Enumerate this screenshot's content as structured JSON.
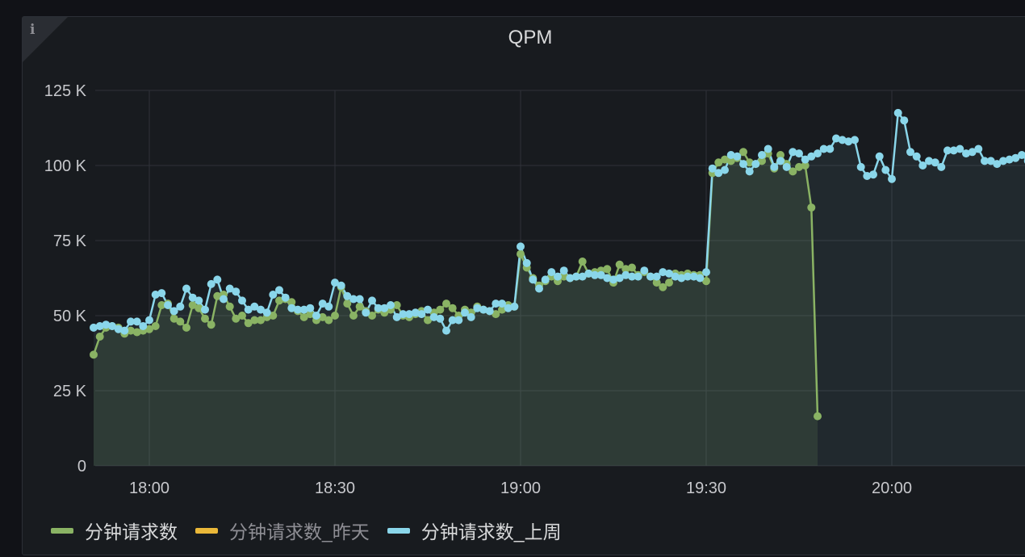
{
  "panel": {
    "title": "QPM",
    "info_icon": "info-icon"
  },
  "chart_data": {
    "type": "line",
    "title": "QPM",
    "x_ticks": [
      "18:00",
      "18:30",
      "19:00",
      "19:30",
      "20:00"
    ],
    "y_ticks": [
      "0",
      "25 K",
      "50 K",
      "75 K",
      "100 K",
      "125 K"
    ],
    "ylim": [
      0,
      125000
    ],
    "xlim_minutes": [
      1071,
      1223
    ],
    "grid": true,
    "legend_position": "bottom-left",
    "series": [
      {
        "name": "分钟请求数",
        "color": "#8ab364",
        "fill": true,
        "points": [
          [
            1071,
            37000
          ],
          [
            1072,
            43000
          ],
          [
            1073,
            46000
          ],
          [
            1074,
            46500
          ],
          [
            1075,
            46000
          ],
          [
            1076,
            44000
          ],
          [
            1077,
            45000
          ],
          [
            1078,
            44500
          ],
          [
            1079,
            45000
          ],
          [
            1080,
            45500
          ],
          [
            1081,
            46500
          ],
          [
            1082,
            53500
          ],
          [
            1083,
            54000
          ],
          [
            1084,
            49000
          ],
          [
            1085,
            48000
          ],
          [
            1086,
            46000
          ],
          [
            1087,
            53500
          ],
          [
            1088,
            52500
          ],
          [
            1089,
            49000
          ],
          [
            1090,
            47000
          ],
          [
            1091,
            56500
          ],
          [
            1092,
            57000
          ],
          [
            1093,
            53000
          ],
          [
            1094,
            49000
          ],
          [
            1095,
            50000
          ],
          [
            1096,
            47500
          ],
          [
            1097,
            48500
          ],
          [
            1098,
            48500
          ],
          [
            1099,
            49500
          ],
          [
            1100,
            50000
          ],
          [
            1101,
            55000
          ],
          [
            1102,
            55500
          ],
          [
            1103,
            54500
          ],
          [
            1104,
            51500
          ],
          [
            1105,
            49500
          ],
          [
            1106,
            50500
          ],
          [
            1107,
            48500
          ],
          [
            1108,
            49500
          ],
          [
            1109,
            48500
          ],
          [
            1110,
            50000
          ],
          [
            1111,
            59500
          ],
          [
            1112,
            54000
          ],
          [
            1113,
            50000
          ],
          [
            1114,
            53000
          ],
          [
            1115,
            51500
          ],
          [
            1116,
            50000
          ],
          [
            1117,
            52000
          ],
          [
            1118,
            51000
          ],
          [
            1119,
            52000
          ],
          [
            1120,
            53500
          ],
          [
            1121,
            50000
          ],
          [
            1122,
            49500
          ],
          [
            1123,
            50500
          ],
          [
            1124,
            51500
          ],
          [
            1125,
            48500
          ],
          [
            1126,
            51000
          ],
          [
            1127,
            52000
          ],
          [
            1128,
            54000
          ],
          [
            1129,
            52500
          ],
          [
            1130,
            50000
          ],
          [
            1131,
            52000
          ],
          [
            1132,
            51000
          ],
          [
            1133,
            53000
          ],
          [
            1134,
            52000
          ],
          [
            1135,
            51500
          ],
          [
            1136,
            50500
          ],
          [
            1137,
            52000
          ],
          [
            1138,
            53500
          ],
          [
            1139,
            53000
          ],
          [
            1140,
            70500
          ],
          [
            1141,
            66000
          ],
          [
            1142,
            62500
          ],
          [
            1143,
            60000
          ],
          [
            1144,
            61500
          ],
          [
            1145,
            63000
          ],
          [
            1146,
            61500
          ],
          [
            1147,
            63000
          ],
          [
            1148,
            62500
          ],
          [
            1149,
            63000
          ],
          [
            1150,
            68000
          ],
          [
            1151,
            64000
          ],
          [
            1152,
            64500
          ],
          [
            1153,
            65000
          ],
          [
            1154,
            65500
          ],
          [
            1155,
            61000
          ],
          [
            1156,
            67000
          ],
          [
            1157,
            65500
          ],
          [
            1158,
            66000
          ],
          [
            1159,
            63500
          ],
          [
            1160,
            64500
          ],
          [
            1161,
            63000
          ],
          [
            1162,
            61000
          ],
          [
            1163,
            59500
          ],
          [
            1164,
            61000
          ],
          [
            1165,
            64000
          ],
          [
            1166,
            63500
          ],
          [
            1167,
            64000
          ],
          [
            1168,
            63500
          ],
          [
            1169,
            63500
          ],
          [
            1170,
            61500
          ],
          [
            1171,
            97500
          ],
          [
            1172,
            101000
          ],
          [
            1173,
            102000
          ],
          [
            1174,
            101500
          ],
          [
            1175,
            102500
          ],
          [
            1176,
            104500
          ],
          [
            1177,
            101000
          ],
          [
            1178,
            100500
          ],
          [
            1179,
            101500
          ],
          [
            1180,
            104000
          ],
          [
            1181,
            99000
          ],
          [
            1182,
            103500
          ],
          [
            1183,
            100500
          ],
          [
            1184,
            98000
          ],
          [
            1185,
            99500
          ],
          [
            1186,
            100000
          ],
          [
            1187,
            86000
          ],
          [
            1188,
            16500
          ]
        ]
      },
      {
        "name": "分钟请求数_昨天",
        "color": "#eab839",
        "hidden": true,
        "points": []
      },
      {
        "name": "分钟请求数_上周",
        "color": "#8ad6ea",
        "fill": true,
        "points": [
          [
            1071,
            46000
          ],
          [
            1072,
            46500
          ],
          [
            1073,
            47000
          ],
          [
            1074,
            46500
          ],
          [
            1075,
            45500
          ],
          [
            1076,
            45000
          ],
          [
            1077,
            48000
          ],
          [
            1078,
            48000
          ],
          [
            1079,
            46500
          ],
          [
            1080,
            48500
          ],
          [
            1081,
            57000
          ],
          [
            1082,
            57500
          ],
          [
            1083,
            53500
          ],
          [
            1084,
            51500
          ],
          [
            1085,
            53000
          ],
          [
            1086,
            59000
          ],
          [
            1087,
            56000
          ],
          [
            1088,
            55000
          ],
          [
            1089,
            52000
          ],
          [
            1090,
            60500
          ],
          [
            1091,
            62000
          ],
          [
            1092,
            55500
          ],
          [
            1093,
            59000
          ],
          [
            1094,
            58000
          ],
          [
            1095,
            55000
          ],
          [
            1096,
            52000
          ],
          [
            1097,
            53000
          ],
          [
            1098,
            52000
          ],
          [
            1099,
            51000
          ],
          [
            1100,
            57000
          ],
          [
            1101,
            58500
          ],
          [
            1102,
            56000
          ],
          [
            1103,
            52500
          ],
          [
            1104,
            52000
          ],
          [
            1105,
            52000
          ],
          [
            1106,
            52500
          ],
          [
            1107,
            50000
          ],
          [
            1108,
            54000
          ],
          [
            1109,
            53000
          ],
          [
            1110,
            61000
          ],
          [
            1111,
            60000
          ],
          [
            1112,
            56500
          ],
          [
            1113,
            55500
          ],
          [
            1114,
            55500
          ],
          [
            1115,
            51000
          ],
          [
            1116,
            55000
          ],
          [
            1117,
            52500
          ],
          [
            1118,
            52500
          ],
          [
            1119,
            53500
          ],
          [
            1120,
            49500
          ],
          [
            1121,
            50500
          ],
          [
            1122,
            50500
          ],
          [
            1123,
            51000
          ],
          [
            1124,
            50500
          ],
          [
            1125,
            52000
          ],
          [
            1126,
            49500
          ],
          [
            1127,
            49000
          ],
          [
            1128,
            45000
          ],
          [
            1129,
            48500
          ],
          [
            1130,
            48500
          ],
          [
            1131,
            51000
          ],
          [
            1132,
            49500
          ],
          [
            1133,
            52500
          ],
          [
            1134,
            52000
          ],
          [
            1135,
            51500
          ],
          [
            1136,
            54000
          ],
          [
            1137,
            54000
          ],
          [
            1138,
            52500
          ],
          [
            1139,
            53000
          ],
          [
            1140,
            73000
          ],
          [
            1141,
            67500
          ],
          [
            1142,
            62000
          ],
          [
            1143,
            59000
          ],
          [
            1144,
            62000
          ],
          [
            1145,
            64500
          ],
          [
            1146,
            63000
          ],
          [
            1147,
            65000
          ],
          [
            1148,
            62500
          ],
          [
            1149,
            63000
          ],
          [
            1150,
            63000
          ],
          [
            1151,
            64000
          ],
          [
            1152,
            63500
          ],
          [
            1153,
            63500
          ],
          [
            1154,
            62500
          ],
          [
            1155,
            62000
          ],
          [
            1156,
            62500
          ],
          [
            1157,
            63500
          ],
          [
            1158,
            63000
          ],
          [
            1159,
            63000
          ],
          [
            1160,
            65000
          ],
          [
            1161,
            63000
          ],
          [
            1162,
            63000
          ],
          [
            1163,
            64500
          ],
          [
            1164,
            64000
          ],
          [
            1165,
            63000
          ],
          [
            1166,
            62500
          ],
          [
            1167,
            63000
          ],
          [
            1168,
            63000
          ],
          [
            1169,
            62500
          ],
          [
            1170,
            64500
          ],
          [
            1171,
            99000
          ],
          [
            1172,
            97500
          ],
          [
            1173,
            98500
          ],
          [
            1174,
            103500
          ],
          [
            1175,
            103000
          ],
          [
            1176,
            100500
          ],
          [
            1177,
            98000
          ],
          [
            1178,
            100500
          ],
          [
            1179,
            103500
          ],
          [
            1180,
            105500
          ],
          [
            1181,
            99500
          ],
          [
            1182,
            101500
          ],
          [
            1183,
            99500
          ],
          [
            1184,
            104500
          ],
          [
            1185,
            104000
          ],
          [
            1186,
            102000
          ],
          [
            1187,
            103000
          ],
          [
            1188,
            104000
          ],
          [
            1189,
            105500
          ],
          [
            1190,
            105500
          ],
          [
            1191,
            109000
          ],
          [
            1192,
            108500
          ],
          [
            1193,
            108000
          ],
          [
            1194,
            108500
          ],
          [
            1195,
            99500
          ],
          [
            1196,
            96500
          ],
          [
            1197,
            97000
          ],
          [
            1198,
            103000
          ],
          [
            1199,
            98500
          ],
          [
            1200,
            95500
          ],
          [
            1201,
            117500
          ],
          [
            1202,
            115000
          ],
          [
            1203,
            104500
          ],
          [
            1204,
            103000
          ],
          [
            1205,
            100000
          ],
          [
            1206,
            101500
          ],
          [
            1207,
            101000
          ],
          [
            1208,
            99500
          ],
          [
            1209,
            105000
          ],
          [
            1210,
            105000
          ],
          [
            1211,
            105500
          ],
          [
            1212,
            104000
          ],
          [
            1213,
            104500
          ],
          [
            1214,
            105500
          ],
          [
            1215,
            101500
          ],
          [
            1216,
            101500
          ],
          [
            1217,
            100500
          ],
          [
            1218,
            101500
          ],
          [
            1219,
            102000
          ],
          [
            1220,
            102500
          ],
          [
            1221,
            103500
          ],
          [
            1222,
            101500
          ],
          [
            1223,
            102000
          ]
        ]
      }
    ]
  },
  "legend": [
    {
      "label": "分钟请求数",
      "color": "#8ab364",
      "dim": false
    },
    {
      "label": "分钟请求数_昨天",
      "color": "#eab839",
      "dim": true
    },
    {
      "label": "分钟请求数_上周",
      "color": "#8ad6ea",
      "dim": false
    }
  ]
}
